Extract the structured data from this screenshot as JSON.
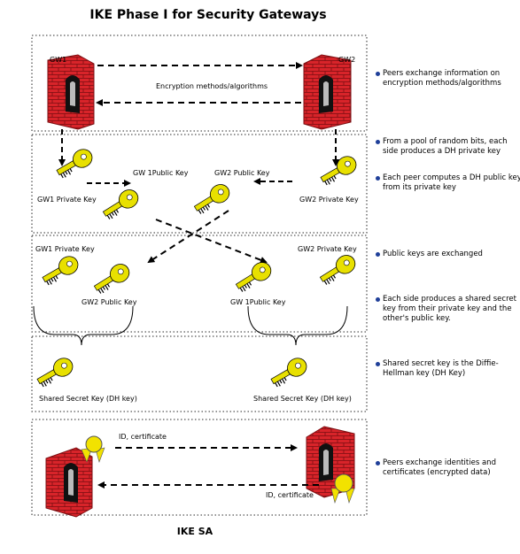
{
  "title": "IKE Phase I for Security  Gateways",
  "footer": "IKE SA",
  "labels": {
    "gw1": "GW1",
    "gw2": "GW2",
    "encryption_methods": "Encryption methods/algorithms",
    "gw1_private_key": "GW1 Private Key",
    "gw1_public_key_top": "GW 1Public Key",
    "gw2_public_key_top": "GW2 Public Key",
    "gw2_private_key": "GW2 Private Key",
    "gw1_private_key_2": "GW1 Private Key",
    "gw2_private_key_2": "GW2 Private Key",
    "gw2_public_key_2": "GW2 Public Key",
    "gw1_public_key_2": "GW 1Public Key",
    "shared_key_left": "Shared Secret Key (DH key)",
    "shared_key_right": "Shared Secret Key (DH key)",
    "id_cert_top": "ID, certificate",
    "id_cert_bottom": "ID, certificate"
  },
  "notes": [
    "Peers exchange information on encryption methods/algorithms",
    "From a pool of random bits, each side produces a DH private key",
    "Each peer computes a DH public key from its private key",
    "Public keys are exchanged",
    "Each side produces a shared secret key from their private key and the other's public key.",
    "Shared secret key is the Diffie-Hellman key (DH Key)",
    "Peers exchange identities and certificates (encrypted data)"
  ],
  "colors": {
    "firewall_red": "#d8242a",
    "key_yellow": "#e8e000",
    "bullet_blue": "#1f3f99",
    "certificate_yellow": "#f2e200"
  }
}
